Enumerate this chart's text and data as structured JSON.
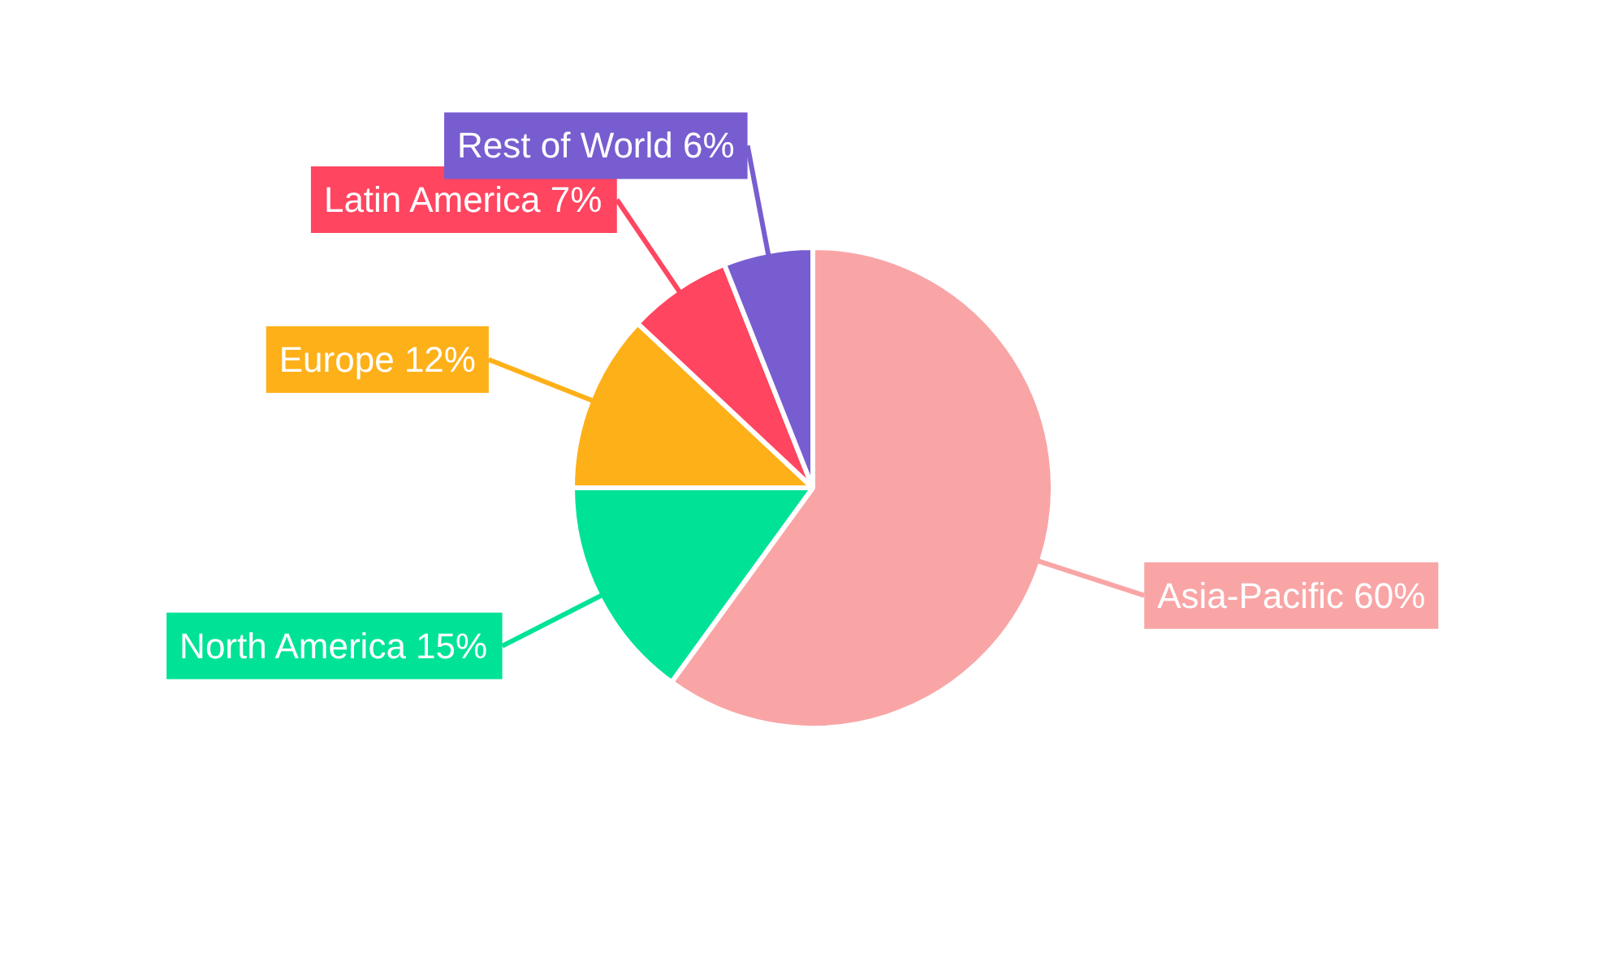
{
  "chart_data": {
    "type": "pie",
    "categories": [
      "Asia-Pacific",
      "North America",
      "Europe",
      "Latin America",
      "Rest of World"
    ],
    "values": [
      60,
      15,
      12,
      7,
      6
    ],
    "value_labels": [
      "60%",
      "15%",
      "12%",
      "7%",
      "6%"
    ],
    "colors": [
      "#f9a5a6",
      "#00e396",
      "#feb019",
      "#ff4560",
      "#775dd0"
    ]
  }
}
